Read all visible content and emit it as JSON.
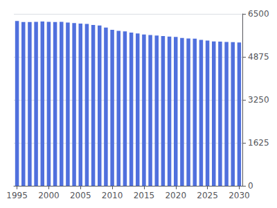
{
  "chart_data": {
    "type": "bar",
    "x": [
      1995,
      1996,
      1997,
      1998,
      1999,
      2000,
      2001,
      2002,
      2003,
      2004,
      2005,
      2006,
      2007,
      2008,
      2009,
      2010,
      2011,
      2012,
      2013,
      2014,
      2015,
      2016,
      2017,
      2018,
      2019,
      2020,
      2021,
      2022,
      2023,
      2024,
      2025,
      2026,
      2027,
      2028,
      2029,
      2030
    ],
    "values": [
      6230,
      6190,
      6190,
      6200,
      6210,
      6200,
      6190,
      6200,
      6170,
      6150,
      6130,
      6120,
      6080,
      6060,
      5980,
      5900,
      5860,
      5840,
      5790,
      5760,
      5720,
      5700,
      5680,
      5660,
      5640,
      5630,
      5590,
      5570,
      5560,
      5520,
      5490,
      5460,
      5450,
      5440,
      5430,
      5420
    ],
    "xlim": [
      1994.5,
      2030.5
    ],
    "xticks": [
      1995,
      2000,
      2005,
      2010,
      2015,
      2020,
      2025,
      2030
    ],
    "ylim": [
      0,
      6500
    ],
    "yticks": [
      0,
      1625,
      3250,
      4875,
      6500
    ],
    "grid": true
  }
}
